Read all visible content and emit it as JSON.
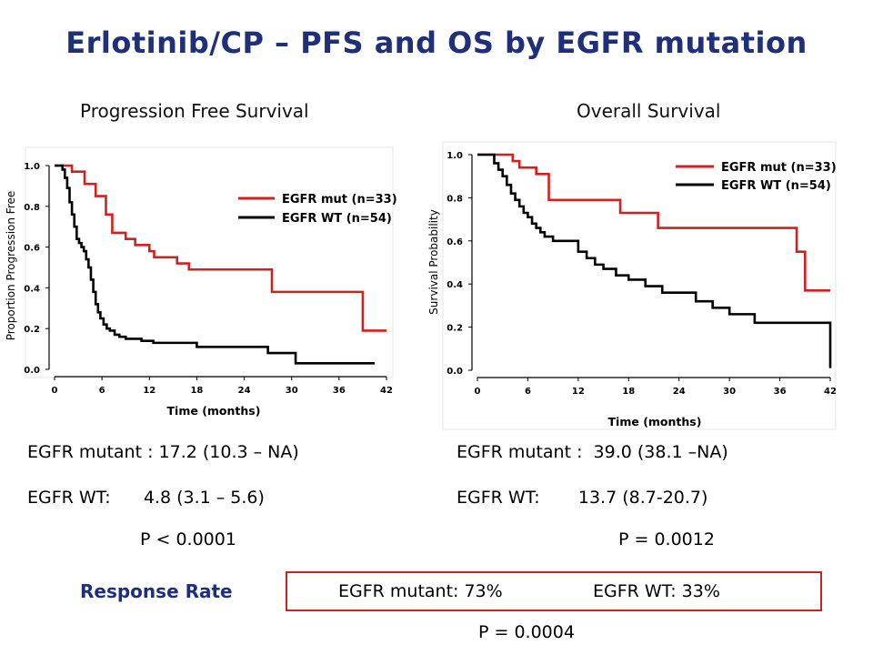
{
  "title": "Erlotinib/CP – PFS and OS by EGFR mutation",
  "response": {
    "label": "Response Rate",
    "mut": "EGFR mutant: 73%",
    "wt": "EGFR WT: 33%",
    "p": "P = 0.0004"
  },
  "colors": {
    "mut": "#cc2222",
    "wt": "#000000",
    "title": "#1f2f78"
  },
  "chart_data": [
    {
      "type": "line",
      "subtitle": "Progression Free Survival",
      "xlabel": "Time (months)",
      "ylabel": "Proportion Progression Free",
      "xlim": [
        0,
        42
      ],
      "ylim": [
        0,
        1
      ],
      "xticks": [
        "0",
        "6",
        "12",
        "18",
        "24",
        "30",
        "36",
        "42"
      ],
      "yticks": [
        "0.0",
        "0.2",
        "0.4",
        "0.6",
        "0.8",
        "1.0"
      ],
      "legend_position": "top-right",
      "series": [
        {
          "name": "EGFR mut (n=33)",
          "color": "#cc2222",
          "x": [
            0,
            2.2,
            3.8,
            5.2,
            6.5,
            7.3,
            9.0,
            10.2,
            12.0,
            12.6,
            15.5,
            17.0,
            19.2,
            27.5,
            39.0,
            42.0
          ],
          "y": [
            1.0,
            0.97,
            0.91,
            0.85,
            0.76,
            0.67,
            0.64,
            0.61,
            0.58,
            0.55,
            0.52,
            0.49,
            0.49,
            0.38,
            0.19,
            0.19
          ]
        },
        {
          "name": "EGFR WT (n=54)",
          "color": "#000000",
          "x": [
            0,
            1.0,
            1.3,
            1.6,
            1.9,
            2.2,
            2.5,
            2.8,
            3.1,
            3.4,
            3.7,
            4.0,
            4.3,
            4.6,
            4.9,
            5.2,
            5.5,
            5.8,
            6.2,
            6.6,
            7.0,
            7.6,
            8.2,
            9.0,
            10.0,
            11.0,
            12.5,
            18.0,
            27.0,
            30.5,
            40.5
          ],
          "y": [
            1.0,
            0.98,
            0.94,
            0.89,
            0.82,
            0.76,
            0.7,
            0.64,
            0.62,
            0.6,
            0.58,
            0.54,
            0.5,
            0.44,
            0.38,
            0.32,
            0.28,
            0.25,
            0.22,
            0.2,
            0.19,
            0.17,
            0.16,
            0.15,
            0.15,
            0.14,
            0.13,
            0.11,
            0.08,
            0.03,
            0.03
          ]
        }
      ]
    },
    {
      "type": "line",
      "subtitle": "Overall Survival",
      "xlabel": "Time (months)",
      "ylabel": "Survival Probability",
      "xlim": [
        0,
        42
      ],
      "ylim": [
        0,
        1
      ],
      "xticks": [
        "0",
        "6",
        "12",
        "18",
        "24",
        "30",
        "36",
        "42"
      ],
      "yticks": [
        "0.0",
        "0.2",
        "0.4",
        "0.6",
        "0.8",
        "1.0"
      ],
      "legend_position": "top-right",
      "series": [
        {
          "name": "EGFR mut (n=33)",
          "color": "#cc2222",
          "x": [
            0,
            4.2,
            5.0,
            7.0,
            8.5,
            17.0,
            21.5,
            38.0,
            39.0,
            42.0
          ],
          "y": [
            1.0,
            0.97,
            0.94,
            0.91,
            0.79,
            0.73,
            0.66,
            0.55,
            0.37,
            0.37
          ]
        },
        {
          "name": "EGFR WT (n=54)",
          "color": "#000000",
          "x": [
            0,
            2.0,
            2.5,
            3.0,
            3.5,
            4.0,
            4.5,
            5.0,
            5.5,
            6.0,
            6.5,
            7.0,
            7.5,
            8.0,
            9.0,
            10.0,
            12.0,
            13.0,
            14.0,
            15.0,
            16.5,
            18.0,
            20.0,
            22.0,
            24.0,
            26.0,
            28.0,
            30.0,
            33.0,
            41.5,
            42.0
          ],
          "y": [
            1.0,
            0.96,
            0.93,
            0.9,
            0.86,
            0.82,
            0.79,
            0.76,
            0.73,
            0.71,
            0.68,
            0.66,
            0.64,
            0.62,
            0.6,
            0.6,
            0.55,
            0.52,
            0.49,
            0.47,
            0.44,
            0.42,
            0.39,
            0.36,
            0.36,
            0.32,
            0.29,
            0.26,
            0.22,
            0.22,
            0.01
          ]
        }
      ]
    }
  ],
  "stats": {
    "pfs": {
      "mut": "EGFR mutant : 17.2 (10.3 – NA)",
      "wt": "EGFR WT:      4.8 (3.1 – 5.6)",
      "p": "P < 0.0001"
    },
    "os": {
      "mut": "EGFR mutant :  39.0 (38.1 –NA)",
      "wt": "EGFR WT:       13.7 (8.7-20.7)",
      "p": "P = 0.0012"
    }
  }
}
